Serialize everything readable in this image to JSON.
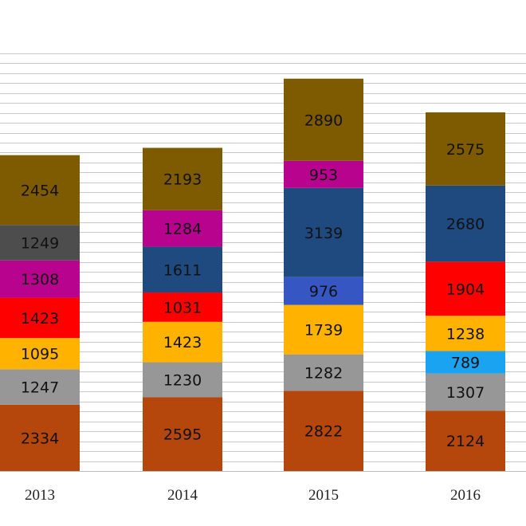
{
  "chart_data": {
    "type": "bar",
    "stacked": true,
    "title": "",
    "xlabel": "",
    "ylabel": "",
    "grid": true,
    "legend": "none",
    "ylim": [
      0,
      14800
    ],
    "categories": [
      "2013",
      "2014",
      "2015",
      "2016"
    ],
    "stacks": [
      {
        "category": "2013",
        "segments": [
          {
            "value": 2334,
            "color": "#B5460C"
          },
          {
            "value": 1247,
            "color": "#979797"
          },
          {
            "value": 1095,
            "color": "#FFB300"
          },
          {
            "value": 1423,
            "color": "#FF0000"
          },
          {
            "value": 1308,
            "color": "#B8038F"
          },
          {
            "value": 1249,
            "color": "#4D4D4D"
          },
          {
            "value": 2454,
            "color": "#7E5A00"
          }
        ]
      },
      {
        "category": "2014",
        "segments": [
          {
            "value": 2595,
            "color": "#B5460C"
          },
          {
            "value": 1230,
            "color": "#979797"
          },
          {
            "value": 1423,
            "color": "#FFB300"
          },
          {
            "value": 1031,
            "color": "#FF0000"
          },
          {
            "value": 1611,
            "color": "#1F4A80"
          },
          {
            "value": 1284,
            "color": "#B8038F"
          },
          {
            "value": 2193,
            "color": "#7E5A00"
          }
        ]
      },
      {
        "category": "2015",
        "segments": [
          {
            "value": 2822,
            "color": "#B5460C"
          },
          {
            "value": 1282,
            "color": "#979797"
          },
          {
            "value": 1739,
            "color": "#FFB300"
          },
          {
            "value": 976,
            "color": "#3656C4"
          },
          {
            "value": 3139,
            "color": "#1F4A80"
          },
          {
            "value": 953,
            "color": "#B8038F"
          },
          {
            "value": 2890,
            "color": "#7E5A00"
          }
        ]
      },
      {
        "category": "2016",
        "segments": [
          {
            "value": 2124,
            "color": "#B5460C"
          },
          {
            "value": 1307,
            "color": "#979797"
          },
          {
            "value": 789,
            "color": "#1AA3F0"
          },
          {
            "value": 1238,
            "color": "#FFB300"
          },
          {
            "value": 1904,
            "color": "#FF0000"
          },
          {
            "value": 2680,
            "color": "#1F4A80"
          },
          {
            "value": 2575,
            "color": "#7E5A00"
          }
        ]
      }
    ]
  }
}
